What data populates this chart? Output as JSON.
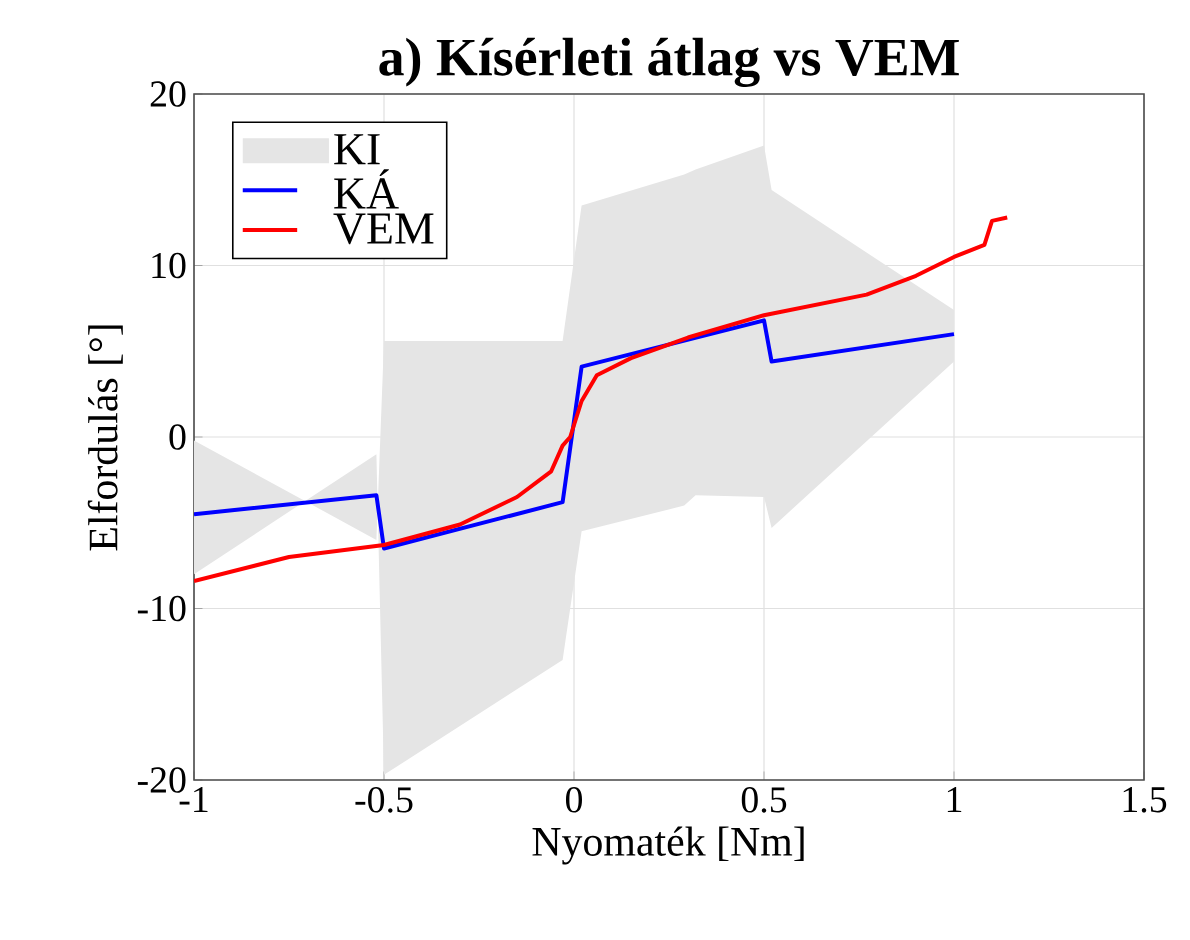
{
  "chart_data": {
    "type": "line",
    "title": "a) Kísérleti átlag vs VEM",
    "xlabel": "Nyomaték [Nm]",
    "ylabel": "Elfordulás [°]",
    "xlim": [
      -1,
      1.5
    ],
    "xticks": [
      -1,
      -0.5,
      0,
      0.5,
      1,
      1.5
    ],
    "ylim": [
      -20,
      20
    ],
    "yticks": [
      -20,
      -10,
      0,
      10,
      20
    ],
    "grid": true,
    "legend": "top left",
    "line_style": "solid",
    "marker": "none",
    "series": [
      {
        "name": "KI",
        "type": "area",
        "color": "#e5e5e5",
        "x": [
          -1,
          -0.52,
          -0.5,
          -0.03,
          0.02,
          0.29,
          0.32,
          0.5,
          0.52,
          1
        ],
        "values": [
          null,
          null,
          null,
          null,
          null,
          null,
          null,
          null,
          null,
          null
        ],
        "upper": [
          -0.2,
          -6,
          5.6,
          5.6,
          13.5,
          15.3,
          15.6,
          17,
          14.4,
          7.4
        ],
        "lower": [
          -8,
          -1,
          -19.7,
          -13,
          -5.5,
          -4,
          -3.4,
          -3.5,
          -5.3,
          4.4
        ]
      },
      {
        "name": "KÁ",
        "color": "#0000ff",
        "x": [
          -1,
          -0.52,
          -0.5,
          -0.03,
          0.02,
          0.5,
          0.52,
          1
        ],
        "values": [
          -4.5,
          -3.4,
          -6.5,
          -3.8,
          4.1,
          6.8,
          4.4,
          6.0
        ]
      },
      {
        "name": "VEM",
        "color": "#ff0000",
        "x": [
          -1,
          -0.75,
          -0.5,
          -0.3,
          -0.15,
          -0.06,
          -0.03,
          -0.01,
          0.02,
          0.06,
          0.15,
          0.3,
          0.5,
          0.77,
          0.9,
          1,
          1.08,
          1.1,
          1.14
        ],
        "values": [
          -8.4,
          -7,
          -6.3,
          -5.1,
          -3.5,
          -2,
          -0.5,
          0,
          2.1,
          3.6,
          4.6,
          5.8,
          7.1,
          8.3,
          9.4,
          10.5,
          11.2,
          12.6,
          12.8
        ]
      }
    ]
  }
}
